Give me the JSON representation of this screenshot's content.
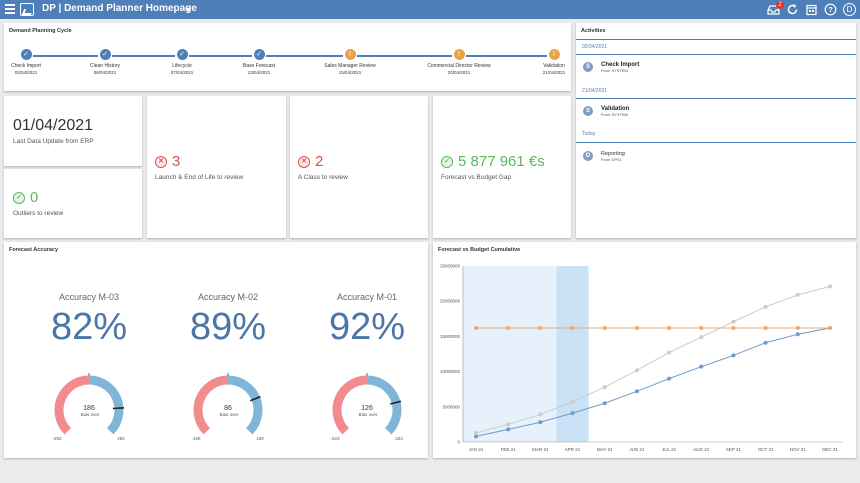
{
  "app": {
    "title": "DP | Demand Planner Homepage",
    "notification_count": "2",
    "user_initial": "D",
    "colors": {
      "header": "#4f7fb8",
      "accent": "#4a76a8",
      "warning": "#e8a44d",
      "bad": "#d9534f",
      "good": "#5cb85c"
    },
    "icons": [
      "menu-icon",
      "app-logo-icon",
      "inbox-icon",
      "refresh-icon",
      "calendar-icon",
      "help-icon"
    ]
  },
  "planning_cycle": {
    "title": "Demand Planning Cycle",
    "steps": [
      {
        "name": "Check Import",
        "date": "02/04/2021",
        "status": "done"
      },
      {
        "name": "Clean History",
        "date": "06/04/2021",
        "status": "done"
      },
      {
        "name": "Lifecycle",
        "date": "07/04/2021",
        "status": "done"
      },
      {
        "name": "Base Forecast",
        "date": "13/04/2021",
        "status": "done"
      },
      {
        "name": "Sales Manager Review",
        "date": "15/04/2021",
        "status": "warning"
      },
      {
        "name": "Commercial Director Review",
        "date": "20/04/2021",
        "status": "warning"
      },
      {
        "name": "Validation",
        "date": "21/04/2021",
        "status": "warning"
      }
    ]
  },
  "kpis": {
    "last_update": {
      "value": "01/04/2021",
      "label": "Last Data Update from ERP"
    },
    "outliers": {
      "value": "0",
      "label": "Outliers to review"
    },
    "launch_eol": {
      "value": "3",
      "label": "Launch & End of Life to review"
    },
    "a_class": {
      "value": "2",
      "label": "A Class to review"
    },
    "budget_gap": {
      "value": "5 877 961 €s",
      "label": "Forecast vs Budget Gap"
    }
  },
  "activities": {
    "title": "Activities",
    "groups": [
      {
        "date": "02/04/2021",
        "items": [
          {
            "initial": "S",
            "title": "Check Import",
            "from": "From SYSTEM",
            "bold": true
          }
        ]
      },
      {
        "date": "21/04/2021",
        "items": [
          {
            "initial": "S",
            "title": "Validation",
            "from": "From SYSTEM",
            "bold": true
          }
        ]
      },
      {
        "date": "Today",
        "items": [
          {
            "initial": "D",
            "title": "Reporting",
            "from": "From DP01",
            "bold": false
          }
        ]
      }
    ]
  },
  "forecast_accuracy": {
    "title": "Forecast Accuracy",
    "gauges": [
      {
        "label": "Accuracy M-03",
        "value": "82%",
        "bias": "186",
        "bias_label": "Bias",
        "over_label": "over",
        "min": "-292",
        "max": "292",
        "top": "0",
        "bias_fraction": 0.82
      },
      {
        "label": "Accuracy M-02",
        "value": "89%",
        "bias": "86",
        "bias_label": "Bias",
        "over_label": "over",
        "min": "-169",
        "max": "169",
        "top": "0",
        "bias_fraction": 0.75
      },
      {
        "label": "Accuracy M-01",
        "value": "92%",
        "bias": "126",
        "bias_label": "Bias",
        "over_label": "over",
        "min": "-223",
        "max": "223",
        "top": "0",
        "bias_fraction": 0.78
      }
    ]
  },
  "chart_data": {
    "type": "line",
    "title": "Forecast vs Budget Cumulative",
    "categories": [
      "JAN 21",
      "FEB 21",
      "MAR 21",
      "APR 21",
      "MAY 21",
      "JUN 21",
      "JUL 21",
      "AUG 21",
      "SEP 21",
      "OCT 21",
      "NOV 21",
      "DEC 21"
    ],
    "ylim": [
      0,
      25000000
    ],
    "yticks": [
      "0",
      "5000000",
      "10000000",
      "15000000",
      "20000000",
      "25000000"
    ],
    "grid": false,
    "legend": "none",
    "shaded_ranges": [
      {
        "from": "JAN 21",
        "to": "MAR 21",
        "color": "#e6f1fb"
      },
      {
        "from": "MAR 21",
        "to": "APR 21",
        "color": "#c9e2f6"
      }
    ],
    "series": [
      {
        "values": [
          800000,
          1800000,
          2800000,
          4100000,
          5500000,
          7200000,
          9000000,
          10700000,
          12300000,
          14100000,
          15300000,
          16200000
        ],
        "color": "#6f9bcf"
      },
      {
        "values": [
          1300000,
          2500000,
          3900000,
          5700000,
          7800000,
          10200000,
          12700000,
          14900000,
          17100000,
          19200000,
          20900000,
          22100000
        ],
        "color": "#cccccc"
      },
      {
        "values": [
          16200000,
          16200000,
          16200000,
          16200000,
          16200000,
          16200000,
          16200000,
          16200000,
          16200000,
          16200000,
          16200000,
          16200000
        ],
        "color": "#f0a96c"
      }
    ]
  }
}
